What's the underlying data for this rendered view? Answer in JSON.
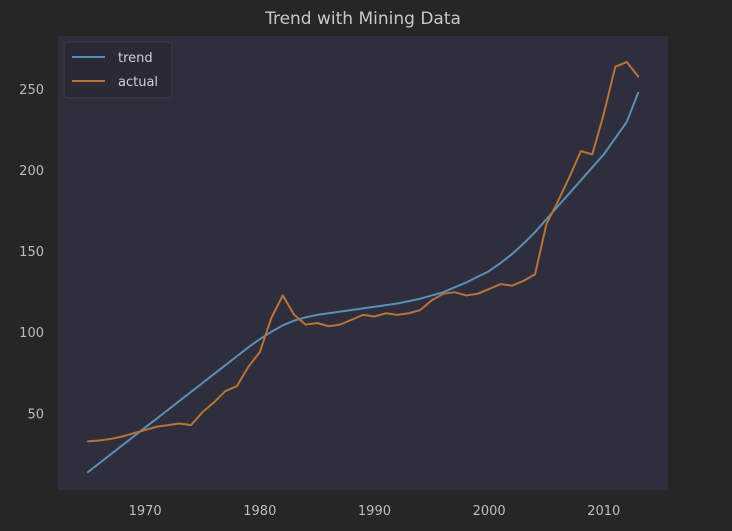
{
  "chart_data": {
    "type": "line",
    "title": "Trend with Mining Data",
    "xlabel": "",
    "ylabel": "",
    "xlim": [
      1962.4,
      2015.6
    ],
    "ylim": [
      3,
      283
    ],
    "xticks": [
      1970,
      1980,
      1990,
      2000,
      2010
    ],
    "yticks": [
      50,
      100,
      150,
      200,
      250
    ],
    "grid": false,
    "legend_position": "upper-left",
    "series": [
      {
        "name": "trend",
        "color": "#5a8fb8",
        "x": [
          1965,
          1966,
          1967,
          1968,
          1969,
          1970,
          1971,
          1972,
          1973,
          1974,
          1975,
          1976,
          1977,
          1978,
          1979,
          1980,
          1981,
          1982,
          1983,
          1984,
          1985,
          1986,
          1987,
          1988,
          1989,
          1990,
          1991,
          1992,
          1993,
          1994,
          1995,
          1996,
          1997,
          1998,
          1999,
          2000,
          2001,
          2002,
          2003,
          2004,
          2005,
          2006,
          2007,
          2008,
          2009,
          2010,
          2011,
          2012,
          2013
        ],
        "values": [
          14,
          19.5,
          25,
          30.5,
          36,
          41.5,
          47,
          52.5,
          58,
          63.5,
          69,
          74.5,
          80,
          85.5,
          91,
          96,
          100.5,
          104.5,
          107.5,
          109.5,
          111,
          112,
          113,
          114,
          115,
          116,
          117,
          118,
          119.5,
          121,
          123,
          125,
          128,
          131,
          134.5,
          138,
          143,
          148.5,
          155,
          162,
          170,
          178,
          186,
          194,
          202,
          210,
          220,
          230,
          248
        ]
      },
      {
        "name": "actual",
        "color": "#b8733a",
        "x": [
          1965,
          1966,
          1967,
          1968,
          1969,
          1970,
          1971,
          1972,
          1973,
          1974,
          1975,
          1976,
          1977,
          1978,
          1979,
          1980,
          1981,
          1982,
          1983,
          1984,
          1985,
          1986,
          1987,
          1988,
          1989,
          1990,
          1991,
          1992,
          1993,
          1994,
          1995,
          1996,
          1997,
          1998,
          1999,
          2000,
          2001,
          2002,
          2003,
          2004,
          2005,
          2006,
          2007,
          2008,
          2009,
          2010,
          2011,
          2012,
          2013
        ],
        "values": [
          33,
          33.5,
          34.5,
          36,
          38,
          40,
          42,
          43,
          44,
          43,
          51,
          57,
          64,
          67,
          79,
          88,
          109,
          123,
          111,
          105,
          106,
          104,
          105,
          108,
          111,
          110,
          112,
          111,
          112,
          114,
          120,
          124,
          125,
          123,
          124,
          127,
          130,
          129,
          132,
          136,
          167,
          181,
          196,
          212,
          210,
          235,
          264,
          267,
          258
        ]
      }
    ]
  }
}
